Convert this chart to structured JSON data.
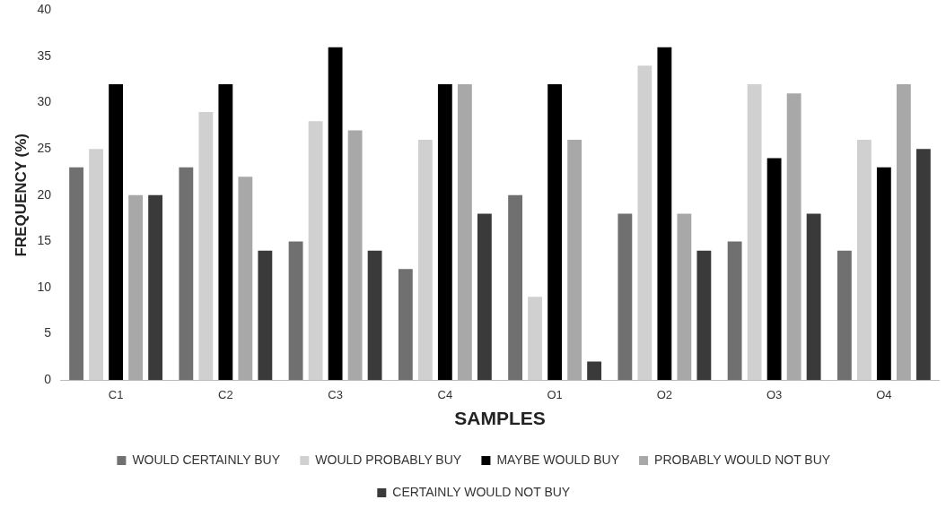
{
  "chart_data": {
    "type": "bar",
    "xlabel": "SAMPLES",
    "ylabel": "FREQUENCY (%)",
    "categories": [
      "C1",
      "C2",
      "C3",
      "C4",
      "O1",
      "O2",
      "O3",
      "O4"
    ],
    "series": [
      {
        "name": "WOULD CERTAINLY BUY",
        "color": "#707070",
        "values": [
          23,
          23,
          15,
          12,
          20,
          18,
          15,
          14
        ]
      },
      {
        "name": "WOULD PROBABLY BUY",
        "color": "#d0d0d0",
        "values": [
          25,
          29,
          28,
          26,
          9,
          34,
          32,
          26
        ]
      },
      {
        "name": "MAYBE WOULD BUY",
        "color": "#000000",
        "values": [
          32,
          32,
          36,
          32,
          32,
          36,
          24,
          23
        ]
      },
      {
        "name": "PROBABLY WOULD NOT BUY",
        "color": "#a8a8a8",
        "values": [
          20,
          22,
          27,
          32,
          26,
          18,
          31,
          32
        ]
      },
      {
        "name": "CERTAINLY WOULD NOT BUY",
        "color": "#3a3a3a",
        "values": [
          20,
          14,
          14,
          18,
          2,
          14,
          18,
          25
        ]
      }
    ],
    "ylim": [
      0,
      40
    ],
    "yticks": [
      0,
      5,
      10,
      15,
      20,
      25,
      30,
      35,
      40
    ],
    "grid": false,
    "legend": "bottom"
  }
}
